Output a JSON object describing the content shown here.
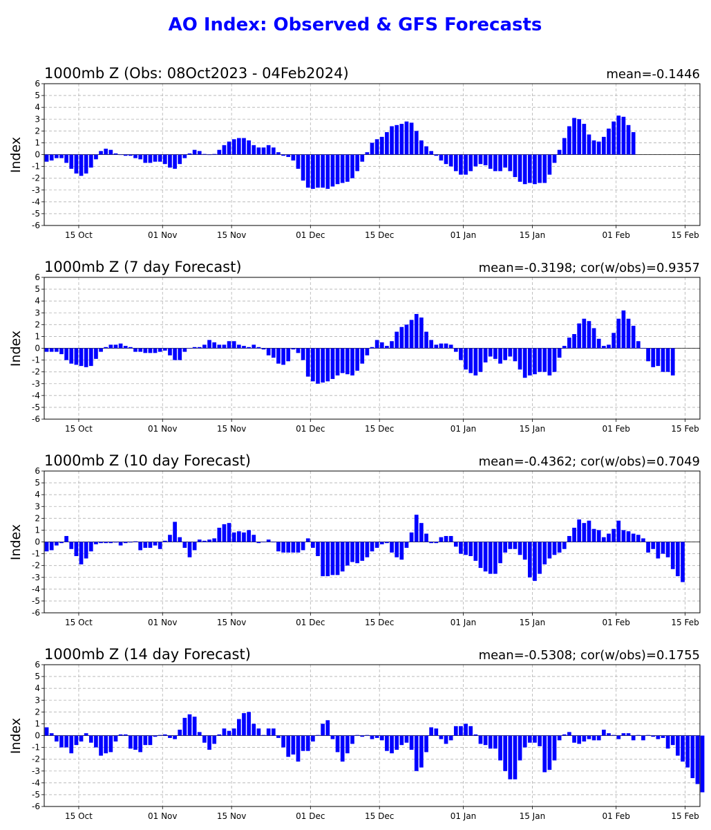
{
  "figure": {
    "title": "AO Index: Observed & GFS Forecasts",
    "title_color": "#0000ff",
    "bar_color": "#0000ff"
  },
  "chart_data": [
    {
      "type": "bar",
      "title": "1000mb Z (Obs: 08Oct2023 - 04Feb2024)",
      "stat": "mean=-0.1446",
      "ylabel": "Index",
      "ylim": [
        -6,
        6
      ],
      "yticks": [
        -6,
        -5,
        -4,
        -3,
        -2,
        -1,
        0,
        1,
        2,
        3,
        4,
        5,
        6
      ],
      "xlim": [
        0,
        133
      ],
      "x_ticks": [
        {
          "pos": 7,
          "label": "15 Oct"
        },
        {
          "pos": 24,
          "label": "01 Nov"
        },
        {
          "pos": 38,
          "label": "15 Nov"
        },
        {
          "pos": 54,
          "label": "01 Dec"
        },
        {
          "pos": 68,
          "label": "15 Dec"
        },
        {
          "pos": 85,
          "label": "01 Jan"
        },
        {
          "pos": 99,
          "label": "15 Jan"
        },
        {
          "pos": 116,
          "label": "01 Feb"
        },
        {
          "pos": 130,
          "label": "15 Feb"
        }
      ],
      "grid": true,
      "values": [
        -0.6,
        -0.5,
        -0.3,
        -0.3,
        -0.7,
        -1.2,
        -1.6,
        -1.8,
        -1.6,
        -1.1,
        -0.4,
        0.3,
        0.5,
        0.4,
        0.1,
        0.0,
        -0.1,
        -0.1,
        -0.3,
        -0.4,
        -0.7,
        -0.7,
        -0.6,
        -0.6,
        -0.8,
        -1.1,
        -1.2,
        -0.8,
        -0.3,
        0.1,
        0.4,
        0.3,
        0.05,
        0.0,
        0.05,
        0.4,
        0.8,
        1.1,
        1.3,
        1.4,
        1.4,
        1.2,
        0.8,
        0.6,
        0.6,
        0.8,
        0.6,
        0.2,
        -0.1,
        -0.2,
        -0.5,
        -1.2,
        -2.2,
        -2.8,
        -2.9,
        -2.8,
        -2.8,
        -2.9,
        -2.7,
        -2.5,
        -2.4,
        -2.3,
        -2.0,
        -1.4,
        -0.6,
        0.2,
        1.0,
        1.3,
        1.5,
        1.9,
        2.4,
        2.5,
        2.6,
        2.8,
        2.7,
        2.0,
        1.2,
        0.7,
        0.3,
        -0.1,
        -0.5,
        -0.8,
        -1.0,
        -1.4,
        -1.7,
        -1.7,
        -1.4,
        -1.0,
        -0.8,
        -0.9,
        -1.2,
        -1.4,
        -1.4,
        -1.1,
        -1.4,
        -1.9,
        -2.3,
        -2.5,
        -2.4,
        -2.5,
        -2.4,
        -2.4,
        -1.7,
        -0.7,
        0.4,
        1.4,
        2.4,
        3.1,
        3.0,
        2.6,
        1.7,
        1.2,
        1.1,
        1.5,
        2.2,
        2.8,
        3.3,
        3.2,
        2.5,
        1.9
      ]
    },
    {
      "type": "bar",
      "title": "1000mb Z (7 day Forecast)",
      "stat": "mean=-0.3198; cor(w/obs)=0.9357",
      "ylabel": "Index",
      "ylim": [
        -6,
        6
      ],
      "yticks": [
        -6,
        -5,
        -4,
        -3,
        -2,
        -1,
        0,
        1,
        2,
        3,
        4,
        5,
        6
      ],
      "xlim": [
        0,
        133
      ],
      "x_ticks": [
        {
          "pos": 7,
          "label": "15 Oct"
        },
        {
          "pos": 24,
          "label": "01 Nov"
        },
        {
          "pos": 38,
          "label": "15 Nov"
        },
        {
          "pos": 54,
          "label": "01 Dec"
        },
        {
          "pos": 68,
          "label": "15 Dec"
        },
        {
          "pos": 85,
          "label": "01 Jan"
        },
        {
          "pos": 99,
          "label": "15 Jan"
        },
        {
          "pos": 116,
          "label": "01 Feb"
        },
        {
          "pos": 130,
          "label": "15 Feb"
        }
      ],
      "grid": true,
      "values": [
        -0.3,
        -0.3,
        -0.3,
        -0.5,
        -1.0,
        -1.3,
        -1.4,
        -1.5,
        -1.6,
        -1.5,
        -0.9,
        -0.3,
        0.1,
        0.3,
        0.3,
        0.4,
        0.2,
        0.1,
        -0.3,
        -0.3,
        -0.4,
        -0.4,
        -0.4,
        -0.3,
        -0.2,
        -0.6,
        -1.0,
        -1.0,
        -0.3,
        0.0,
        0.1,
        0.1,
        0.3,
        0.7,
        0.5,
        0.3,
        0.3,
        0.6,
        0.6,
        0.3,
        0.2,
        0.1,
        0.3,
        0.1,
        -0.1,
        -0.6,
        -0.8,
        -1.3,
        -1.4,
        -1.1,
        -0.1,
        -0.4,
        -1.0,
        -2.4,
        -2.8,
        -3.0,
        -2.9,
        -2.8,
        -2.6,
        -2.3,
        -2.1,
        -2.2,
        -2.3,
        -1.9,
        -1.3,
        -0.6,
        0.1,
        0.7,
        0.5,
        0.2,
        0.6,
        1.4,
        1.8,
        2.0,
        2.4,
        2.9,
        2.6,
        1.4,
        0.7,
        0.3,
        0.4,
        0.4,
        0.3,
        -0.3,
        -1.0,
        -1.8,
        -2.1,
        -2.3,
        -2.0,
        -1.2,
        -0.7,
        -0.9,
        -1.3,
        -1.0,
        -0.7,
        -1.1,
        -1.8,
        -2.5,
        -2.3,
        -2.2,
        -2.0,
        -2.0,
        -2.3,
        -2.0,
        -0.8,
        0.2,
        0.9,
        1.2,
        2.1,
        2.5,
        2.3,
        1.7,
        0.8,
        0.2,
        0.3,
        1.3,
        2.5,
        3.2,
        2.5,
        1.9,
        0.6,
        0.0,
        -1.1,
        -1.6,
        -1.5,
        -2.0,
        -2.0,
        -2.3
      ]
    },
    {
      "type": "bar",
      "title": "1000mb Z (10 day Forecast)",
      "stat": "mean=-0.4362; cor(w/obs)=0.7049",
      "ylabel": "Index",
      "ylim": [
        -6,
        6
      ],
      "yticks": [
        -6,
        -5,
        -4,
        -3,
        -2,
        -1,
        0,
        1,
        2,
        3,
        4,
        5,
        6
      ],
      "xlim": [
        0,
        133
      ],
      "x_ticks": [
        {
          "pos": 7,
          "label": "15 Oct"
        },
        {
          "pos": 24,
          "label": "01 Nov"
        },
        {
          "pos": 38,
          "label": "15 Nov"
        },
        {
          "pos": 54,
          "label": "01 Dec"
        },
        {
          "pos": 68,
          "label": "15 Dec"
        },
        {
          "pos": 85,
          "label": "01 Jan"
        },
        {
          "pos": 99,
          "label": "15 Jan"
        },
        {
          "pos": 116,
          "label": "01 Feb"
        },
        {
          "pos": 130,
          "label": "15 Feb"
        }
      ],
      "grid": true,
      "values": [
        -0.8,
        -0.7,
        -0.3,
        -0.1,
        0.5,
        -0.6,
        -1.2,
        -1.9,
        -1.4,
        -0.8,
        -0.2,
        -0.1,
        -0.1,
        -0.1,
        -0.05,
        -0.3,
        -0.1,
        -0.05,
        0.05,
        -0.7,
        -0.5,
        -0.5,
        -0.3,
        -0.6,
        0.1,
        0.6,
        1.7,
        0.4,
        -0.5,
        -1.3,
        -0.7,
        0.2,
        0.1,
        0.2,
        0.3,
        1.2,
        1.5,
        1.6,
        0.8,
        0.9,
        0.8,
        1.0,
        0.6,
        -0.1,
        0.0,
        0.2,
        0.0,
        -0.8,
        -0.9,
        -0.9,
        -0.9,
        -0.9,
        -0.7,
        0.3,
        -0.5,
        -1.2,
        -2.9,
        -2.9,
        -2.8,
        -2.8,
        -2.5,
        -2.0,
        -1.7,
        -1.8,
        -1.6,
        -1.3,
        -0.8,
        -0.5,
        -0.2,
        -0.1,
        -0.9,
        -1.3,
        -1.5,
        -0.5,
        0.8,
        2.3,
        1.6,
        0.7,
        -0.1,
        -0.1,
        0.4,
        0.5,
        0.5,
        -0.4,
        -1.0,
        -1.1,
        -1.2,
        -1.6,
        -2.2,
        -2.5,
        -2.7,
        -2.7,
        -1.8,
        -0.9,
        -0.6,
        -0.6,
        -1.1,
        -1.5,
        -3.0,
        -3.3,
        -2.7,
        -1.9,
        -1.4,
        -1.1,
        -0.9,
        -0.6,
        0.5,
        1.2,
        1.9,
        1.6,
        1.8,
        1.1,
        1.0,
        0.4,
        0.7,
        1.1,
        1.8,
        1.0,
        0.9,
        0.7,
        0.6,
        0.3,
        -0.9,
        -0.6,
        -1.4,
        -1.0,
        -1.3,
        -2.3,
        -2.9,
        -3.4
      ]
    },
    {
      "type": "bar",
      "title": "1000mb Z (14 day Forecast)",
      "stat": "mean=-0.5308; cor(w/obs)=0.1755",
      "ylabel": "Index",
      "ylim": [
        -6,
        6
      ],
      "yticks": [
        -6,
        -5,
        -4,
        -3,
        -2,
        -1,
        0,
        1,
        2,
        3,
        4,
        5,
        6
      ],
      "xlim": [
        0,
        133
      ],
      "x_ticks": [
        {
          "pos": 7,
          "label": "15 Oct"
        },
        {
          "pos": 24,
          "label": "01 Nov"
        },
        {
          "pos": 38,
          "label": "15 Nov"
        },
        {
          "pos": 54,
          "label": "01 Dec"
        },
        {
          "pos": 68,
          "label": "15 Dec"
        },
        {
          "pos": 85,
          "label": "01 Jan"
        },
        {
          "pos": 99,
          "label": "15 Jan"
        },
        {
          "pos": 116,
          "label": "01 Feb"
        },
        {
          "pos": 130,
          "label": "15 Feb"
        }
      ],
      "grid": true,
      "values": [
        0.7,
        0.2,
        -0.5,
        -1.0,
        -1.0,
        -1.5,
        -0.8,
        -0.5,
        0.2,
        -0.6,
        -1.0,
        -1.7,
        -1.5,
        -1.4,
        -0.5,
        0.1,
        0.1,
        -1.1,
        -1.2,
        -1.4,
        -0.8,
        -0.8,
        -0.1,
        0.05,
        0.1,
        -0.2,
        -0.3,
        0.5,
        1.5,
        1.8,
        1.6,
        0.3,
        -0.6,
        -1.2,
        -0.7,
        0.1,
        0.6,
        0.4,
        0.6,
        1.4,
        1.9,
        2.0,
        1.0,
        0.6,
        0.05,
        0.6,
        0.6,
        -0.2,
        -1.0,
        -1.8,
        -1.6,
        -2.2,
        -1.3,
        -1.3,
        -0.5,
        0.05,
        1.0,
        1.3,
        -0.3,
        -1.4,
        -2.2,
        -1.5,
        -0.7,
        0.05,
        -0.1,
        0.05,
        -0.3,
        -0.2,
        -0.4,
        -1.3,
        -1.5,
        -1.2,
        -0.8,
        -0.6,
        -1.2,
        -3.0,
        -2.7,
        -1.4,
        0.7,
        0.6,
        -0.3,
        -0.7,
        -0.4,
        0.8,
        0.8,
        1.0,
        0.8,
        0.1,
        -0.7,
        -0.8,
        -1.1,
        -1.1,
        -2.1,
        -3.0,
        -3.7,
        -3.7,
        -2.1,
        -1.0,
        -0.6,
        -0.6,
        -0.9,
        -3.1,
        -2.9,
        -2.1,
        -0.4,
        0.1,
        0.3,
        -0.6,
        -0.7,
        -0.5,
        -0.3,
        -0.4,
        -0.4,
        0.5,
        0.2,
        0.05,
        -0.3,
        0.2,
        0.2,
        -0.4,
        0.05,
        -0.4,
        0.05,
        -0.1,
        -0.3,
        -0.2,
        -1.1,
        -0.8,
        -1.7,
        -2.2,
        -2.7,
        -3.6,
        -4.1,
        -4.8
      ]
    }
  ]
}
